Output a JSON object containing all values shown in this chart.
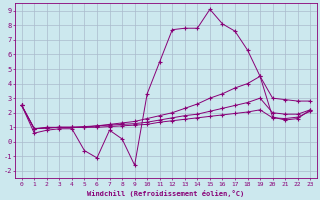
{
  "xlabel": "Windchill (Refroidissement éolien,°C)",
  "bg_color": "#cce8ee",
  "grid_color": "#aabbcc",
  "line_color": "#880077",
  "xlim": [
    -0.5,
    23.5
  ],
  "ylim": [
    -2.5,
    9.5
  ],
  "xticks": [
    0,
    1,
    2,
    3,
    4,
    5,
    6,
    7,
    8,
    9,
    10,
    11,
    12,
    13,
    14,
    15,
    16,
    17,
    18,
    19,
    20,
    21,
    22,
    23
  ],
  "yticks": [
    -2,
    -1,
    0,
    1,
    2,
    3,
    4,
    5,
    6,
    7,
    8,
    9
  ],
  "line1_x": [
    0,
    1,
    2,
    3,
    4,
    5,
    6,
    7,
    8,
    9,
    10,
    11,
    12,
    13,
    14,
    15,
    16,
    17,
    18,
    19,
    20,
    21,
    22,
    23
  ],
  "line1_y": [
    2.5,
    0.6,
    0.8,
    0.9,
    0.9,
    -0.6,
    -1.1,
    0.8,
    0.2,
    -1.6,
    3.3,
    5.5,
    7.7,
    7.8,
    7.8,
    9.1,
    8.1,
    7.6,
    6.3,
    4.5,
    1.7,
    1.5,
    1.6,
    2.2
  ],
  "line2_x": [
    0,
    1,
    2,
    3,
    4,
    5,
    6,
    7,
    8,
    9,
    10,
    11,
    12,
    13,
    14,
    15,
    16,
    17,
    18,
    19,
    20,
    21,
    22,
    23
  ],
  "line2_y": [
    2.5,
    0.9,
    1.0,
    1.0,
    1.0,
    1.0,
    1.1,
    1.2,
    1.3,
    1.4,
    1.6,
    1.8,
    2.0,
    2.3,
    2.6,
    3.0,
    3.3,
    3.7,
    4.0,
    4.5,
    3.0,
    2.9,
    2.8,
    2.8
  ],
  "line3_x": [
    0,
    1,
    2,
    3,
    4,
    5,
    6,
    7,
    8,
    9,
    10,
    11,
    12,
    13,
    14,
    15,
    16,
    17,
    18,
    19,
    20,
    21,
    22,
    23
  ],
  "line3_y": [
    2.5,
    0.9,
    0.95,
    1.0,
    1.0,
    1.05,
    1.1,
    1.15,
    1.2,
    1.25,
    1.35,
    1.5,
    1.65,
    1.8,
    1.9,
    2.1,
    2.3,
    2.5,
    2.7,
    3.0,
    2.0,
    1.9,
    1.9,
    2.2
  ],
  "line4_x": [
    0,
    1,
    2,
    3,
    4,
    5,
    6,
    7,
    8,
    9,
    10,
    11,
    12,
    13,
    14,
    15,
    16,
    17,
    18,
    19,
    20,
    21,
    22,
    23
  ],
  "line4_y": [
    2.5,
    0.9,
    0.95,
    1.0,
    1.0,
    1.0,
    1.0,
    1.05,
    1.1,
    1.15,
    1.2,
    1.35,
    1.45,
    1.55,
    1.65,
    1.75,
    1.85,
    1.95,
    2.05,
    2.2,
    1.65,
    1.6,
    1.7,
    2.1
  ]
}
